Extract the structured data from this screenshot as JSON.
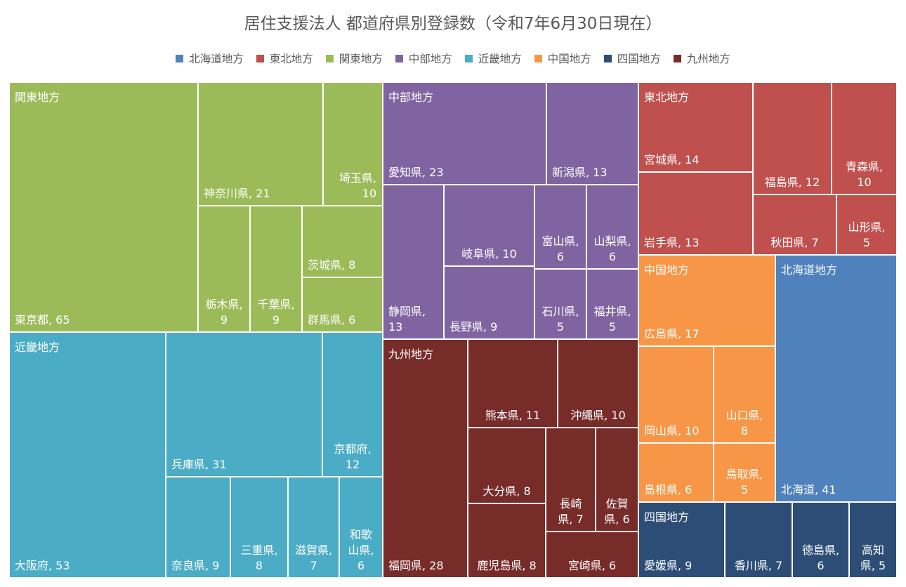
{
  "chart_data": {
    "type": "treemap",
    "title": "居住支援法人 都道府県別登録数（令和7年6月30日現在）",
    "legend": [
      {
        "name": "北海道地方",
        "color": "#4f81bd"
      },
      {
        "name": "東北地方",
        "color": "#c0504d"
      },
      {
        "name": "関東地方",
        "color": "#9bbb59"
      },
      {
        "name": "中部地方",
        "color": "#8064a2"
      },
      {
        "name": "近畿地方",
        "color": "#4bacc6"
      },
      {
        "name": "中国地方",
        "color": "#f79646"
      },
      {
        "name": "四国地方",
        "color": "#2c4d75"
      },
      {
        "name": "九州地方",
        "color": "#772c2a"
      }
    ],
    "legend_position": "top",
    "groups": [
      {
        "name": "関東地方",
        "items": [
          {
            "name": "東京都",
            "value": 65
          },
          {
            "name": "神奈川県",
            "value": 21
          },
          {
            "name": "埼玉県",
            "value": 10
          },
          {
            "name": "栃木県",
            "value": 9
          },
          {
            "name": "千葉県",
            "value": 9
          },
          {
            "name": "茨城県",
            "value": 8
          },
          {
            "name": "群馬県",
            "value": 6
          }
        ]
      },
      {
        "name": "近畿地方",
        "items": [
          {
            "name": "大阪府",
            "value": 53
          },
          {
            "name": "兵庫県",
            "value": 31
          },
          {
            "name": "京都府",
            "value": 12
          },
          {
            "name": "奈良県",
            "value": 9
          },
          {
            "name": "三重県",
            "value": 8
          },
          {
            "name": "滋賀県",
            "value": 7
          },
          {
            "name": "和歌山県",
            "value": 6
          }
        ]
      },
      {
        "name": "中部地方",
        "items": [
          {
            "name": "愛知県",
            "value": 23
          },
          {
            "name": "新潟県",
            "value": 13
          },
          {
            "name": "静岡県",
            "value": 13
          },
          {
            "name": "岐阜県",
            "value": 10
          },
          {
            "name": "長野県",
            "value": 9
          },
          {
            "name": "富山県",
            "value": 6
          },
          {
            "name": "山梨県",
            "value": 6
          },
          {
            "name": "石川県",
            "value": 5
          },
          {
            "name": "福井県",
            "value": 5
          }
        ]
      },
      {
        "name": "九州地方",
        "items": [
          {
            "name": "福岡県",
            "value": 28
          },
          {
            "name": "熊本県",
            "value": 11
          },
          {
            "name": "沖縄県",
            "value": 10
          },
          {
            "name": "大分県",
            "value": 8
          },
          {
            "name": "長崎県",
            "value": 7
          },
          {
            "name": "佐賀県",
            "value": 6
          },
          {
            "name": "鹿児島県",
            "value": 8
          },
          {
            "name": "宮崎県",
            "value": 6
          }
        ]
      },
      {
        "name": "東北地方",
        "items": [
          {
            "name": "宮城県",
            "value": 14
          },
          {
            "name": "岩手県",
            "value": 13
          },
          {
            "name": "福島県",
            "value": 12
          },
          {
            "name": "青森県",
            "value": 10
          },
          {
            "name": "秋田県",
            "value": 7
          },
          {
            "name": "山形県",
            "value": 5
          }
        ]
      },
      {
        "name": "中国地方",
        "items": [
          {
            "name": "広島県",
            "value": 17
          },
          {
            "name": "岡山県",
            "value": 10
          },
          {
            "name": "山口県",
            "value": 8
          },
          {
            "name": "島根県",
            "value": 6
          },
          {
            "name": "鳥取県",
            "value": 5
          }
        ]
      },
      {
        "name": "北海道地方",
        "items": [
          {
            "name": "北海道",
            "value": 41
          }
        ]
      },
      {
        "name": "四国地方",
        "items": [
          {
            "name": "愛媛県",
            "value": 9
          },
          {
            "name": "香川県",
            "value": 7
          },
          {
            "name": "徳島県",
            "value": 6
          },
          {
            "name": "高知県",
            "value": 5
          }
        ]
      }
    ]
  }
}
